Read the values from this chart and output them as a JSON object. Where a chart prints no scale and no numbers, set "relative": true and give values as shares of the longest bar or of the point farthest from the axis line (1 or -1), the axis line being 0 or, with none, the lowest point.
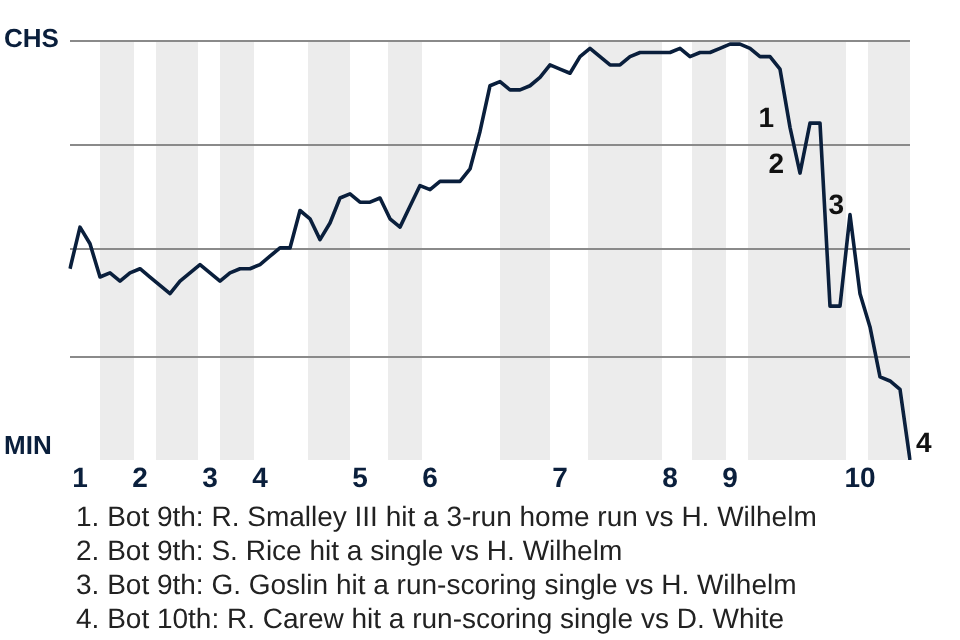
{
  "chart_data": {
    "type": "line",
    "relative": true,
    "categories": [
      null,
      "1",
      null,
      null,
      null,
      null,
      null,
      "2",
      null,
      null,
      null,
      null,
      null,
      null,
      "3",
      null,
      null,
      null,
      null,
      "4",
      null,
      null,
      null,
      null,
      null,
      null,
      null,
      null,
      null,
      "5",
      null,
      null,
      null,
      null,
      null,
      null,
      "6",
      null,
      null,
      null,
      null,
      null,
      null,
      null,
      null,
      null,
      null,
      null,
      null,
      "7",
      null,
      null,
      null,
      null,
      null,
      null,
      null,
      null,
      null,
      null,
      "8",
      null,
      null,
      null,
      null,
      null,
      "9",
      null,
      null,
      null,
      null,
      null,
      null,
      null,
      null,
      null,
      null,
      null,
      null,
      "10",
      null,
      null,
      null,
      null,
      null
    ],
    "series": [
      {
        "color": "#0a1f3c",
        "values": [
          0.46,
          0.56,
          0.52,
          0.44,
          0.45,
          0.43,
          0.45,
          0.46,
          0.44,
          0.42,
          0.4,
          0.43,
          0.45,
          0.47,
          0.45,
          0.43,
          0.45,
          0.46,
          0.46,
          0.47,
          0.49,
          0.51,
          0.51,
          0.6,
          0.58,
          0.53,
          0.57,
          0.63,
          0.64,
          0.62,
          0.62,
          0.63,
          0.58,
          0.56,
          0.61,
          0.66,
          0.65,
          0.67,
          0.67,
          0.67,
          0.7,
          0.79,
          0.9,
          0.91,
          0.89,
          0.89,
          0.9,
          0.92,
          0.95,
          0.94,
          0.93,
          0.97,
          0.99,
          0.97,
          0.95,
          0.95,
          0.97,
          0.98,
          0.98,
          0.98,
          0.98,
          0.99,
          0.97,
          0.98,
          0.98,
          0.99,
          1,
          1,
          0.99,
          0.97,
          0.97,
          0.94,
          0.8,
          0.69,
          0.81,
          0.81,
          0.37,
          0.37,
          0.59,
          0.4,
          0.32,
          0.2,
          0.19,
          0.17,
          0
        ]
      }
    ],
    "legend": false,
    "marker": "none",
    "line_style": "solid",
    "ref_lines": [
      {
        "axis": "y",
        "value": 0.25,
        "color": "#8a8a8a"
      },
      {
        "axis": "y",
        "value": 0.51,
        "color": "#8a8a8a"
      },
      {
        "axis": "y",
        "value": 0.76,
        "color": "#8a8a8a"
      },
      {
        "axis": "y",
        "value": 1.01,
        "color": "#8a8a8a"
      }
    ],
    "annotations": [
      "CHS",
      "MIN",
      "1",
      "2",
      "3",
      "4",
      "1. Bot 9th: R. Smalley III hit a 3-run home run vs H. Wilhelm",
      "2. Bot 9th: S. Rice hit a single vs H. Wilhelm",
      "3. Bot 9th: G. Goslin hit a run-scoring single vs H. Wilhelm",
      "4. Bot 10th: R. Carew hit a run-scoring single vs D. White"
    ]
  }
}
